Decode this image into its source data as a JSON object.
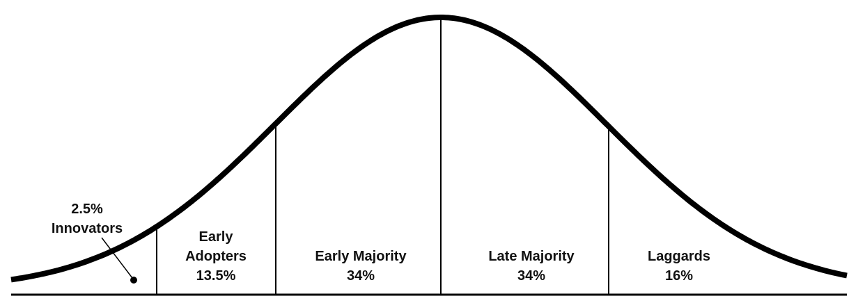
{
  "diagram": {
    "segments": [
      {
        "name": "Innovators",
        "percent": "2.5%",
        "lines": [
          "2.5%",
          "Innovators"
        ]
      },
      {
        "name": "Early Adopters",
        "percent": "13.5%",
        "lines": [
          "Early",
          "Adopters",
          "13.5%"
        ]
      },
      {
        "name": "Early Majority",
        "percent": "34%",
        "lines": [
          "Early Majority",
          "34%"
        ]
      },
      {
        "name": "Late Majority",
        "percent": "34%",
        "lines": [
          "Late Majority",
          "34%"
        ]
      },
      {
        "name": "Laggards",
        "percent": "16%",
        "lines": [
          "Laggards",
          "16%"
        ]
      }
    ],
    "curve": "normal distribution",
    "colors": {
      "line": "#000000",
      "background": "#ffffff"
    }
  }
}
